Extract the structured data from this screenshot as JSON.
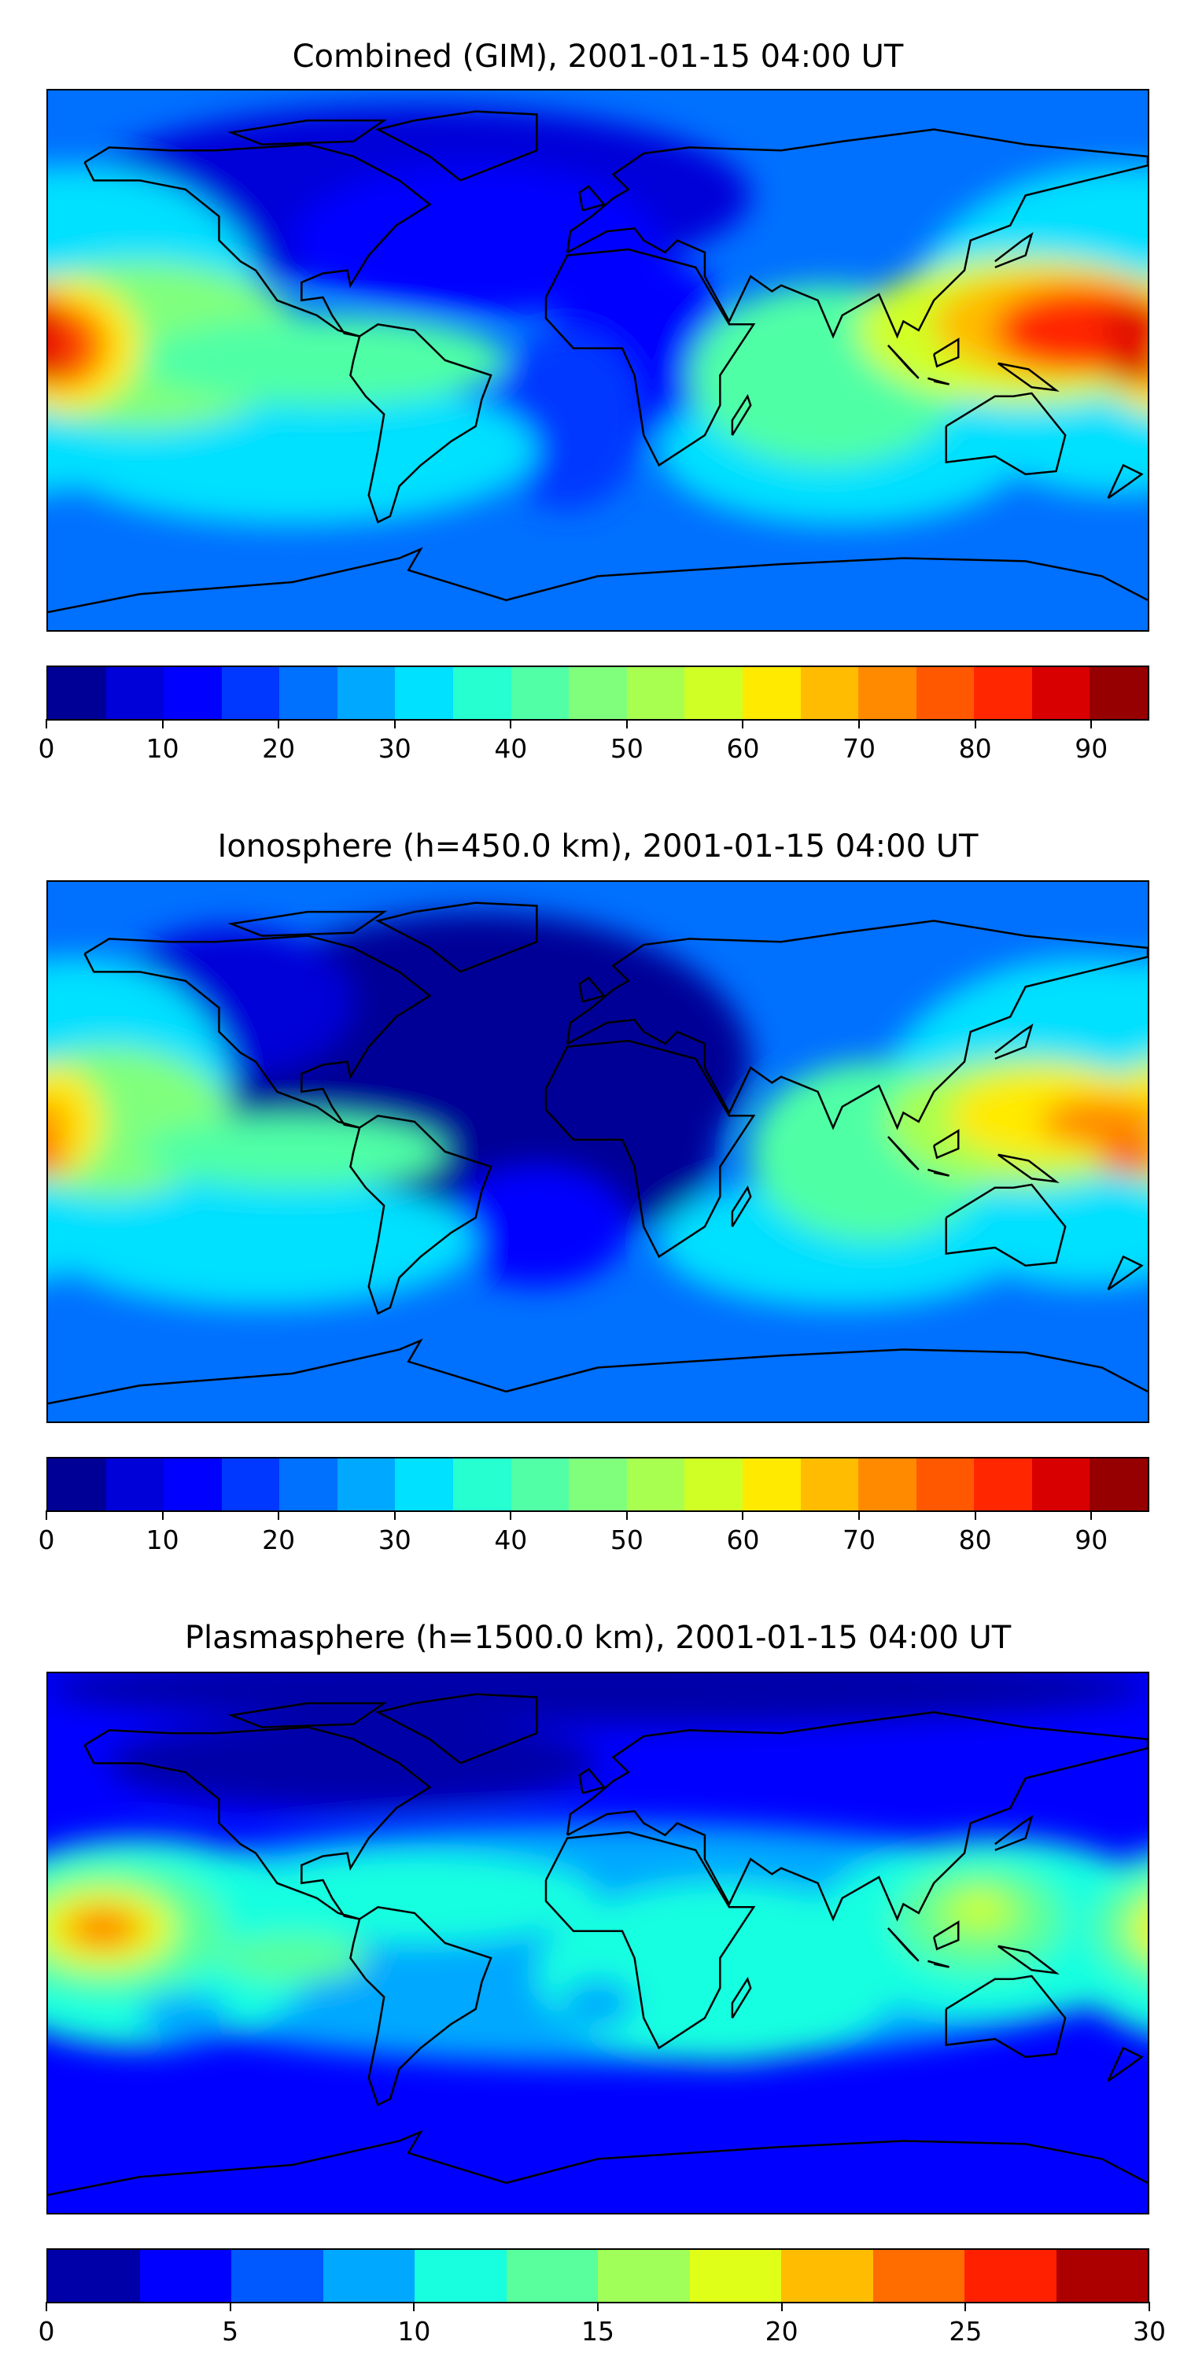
{
  "chart_data": [
    {
      "type": "heatmap",
      "title": "Combined (GIM), 2001-01-15 04:00 UT",
      "xlabel": "",
      "ylabel": "",
      "xlim": [
        -180,
        180
      ],
      "ylim": [
        -90,
        90
      ],
      "colorbar": {
        "levels": [
          0,
          5,
          10,
          15,
          20,
          25,
          30,
          35,
          40,
          45,
          50,
          55,
          60,
          65,
          70,
          75,
          80,
          85,
          90,
          95
        ],
        "colors": [
          "#000096",
          "#0000d8",
          "#0000ff",
          "#0038ff",
          "#0070ff",
          "#00a8ff",
          "#00e0ff",
          "#26ffd0",
          "#50ffa6",
          "#80ff7d",
          "#a8ff50",
          "#d0ff26",
          "#ffea00",
          "#ffbc00",
          "#ff8a00",
          "#ff5800",
          "#ff2600",
          "#d80000",
          "#960000"
        ],
        "ticks": [
          "0",
          "10",
          "20",
          "30",
          "40",
          "50",
          "60",
          "70",
          "80",
          "90"
        ],
        "tick_values": [
          0,
          10,
          20,
          30,
          40,
          50,
          60,
          70,
          80,
          90
        ]
      },
      "features": [
        {
          "region": "central Pacific near equator",
          "approx_value": 80
        },
        {
          "region": "western Pacific / Indonesia",
          "approx_value": 85
        },
        {
          "region": "North America / North Atlantic",
          "approx_value": 10
        },
        {
          "region": "Africa",
          "approx_value": 12
        }
      ]
    },
    {
      "type": "heatmap",
      "title": "Ionosphere  (h=450.0 km), 2001-01-15 04:00 UT",
      "xlabel": "",
      "ylabel": "",
      "xlim": [
        -180,
        180
      ],
      "ylim": [
        -90,
        90
      ],
      "colorbar": {
        "levels": [
          0,
          5,
          10,
          15,
          20,
          25,
          30,
          35,
          40,
          45,
          50,
          55,
          60,
          65,
          70,
          75,
          80,
          85,
          90,
          95
        ],
        "colors": [
          "#000096",
          "#0000d8",
          "#0000ff",
          "#0038ff",
          "#0070ff",
          "#00a8ff",
          "#00e0ff",
          "#26ffd0",
          "#50ffa6",
          "#80ff7d",
          "#a8ff50",
          "#d0ff26",
          "#ffea00",
          "#ffbc00",
          "#ff8a00",
          "#ff5800",
          "#ff2600",
          "#d80000",
          "#960000"
        ],
        "ticks": [
          "0",
          "10",
          "20",
          "30",
          "40",
          "50",
          "60",
          "70",
          "80",
          "90"
        ],
        "tick_values": [
          0,
          10,
          20,
          30,
          40,
          50,
          60,
          70,
          80,
          90
        ]
      },
      "features": [
        {
          "region": "central Pacific near equator",
          "approx_value": 65
        },
        {
          "region": "western Pacific / Indonesia",
          "approx_value": 75
        },
        {
          "region": "Atlantic / Africa / North America",
          "approx_value": 3
        }
      ]
    },
    {
      "type": "heatmap",
      "title": "Plasmasphere (h=1500.0 km), 2001-01-15 04:00 UT",
      "xlabel": "",
      "ylabel": "",
      "xlim": [
        -180,
        180
      ],
      "ylim": [
        -90,
        90
      ],
      "colorbar": {
        "levels": [
          0,
          2.5,
          5,
          7.5,
          10,
          12.5,
          15,
          17.5,
          20,
          22.5,
          25,
          27.5,
          30
        ],
        "colors": [
          "#0000a8",
          "#0000ff",
          "#0058ff",
          "#00a8ff",
          "#18ffe0",
          "#58ff9c",
          "#a0ff58",
          "#e0ff18",
          "#ffbc00",
          "#ff6c00",
          "#ff2000",
          "#ac0000"
        ],
        "ticks": [
          "0",
          "5",
          "10",
          "15",
          "20",
          "25",
          "30"
        ],
        "tick_values": [
          0,
          5,
          10,
          15,
          20,
          25,
          30
        ]
      },
      "features": [
        {
          "region": "central Pacific near equator",
          "approx_value": 23
        },
        {
          "region": "western Pacific / Indonesia",
          "approx_value": 18
        },
        {
          "region": "equatorial band",
          "approx_value": 11
        },
        {
          "region": "high latitudes",
          "approx_value": 3
        }
      ]
    }
  ]
}
